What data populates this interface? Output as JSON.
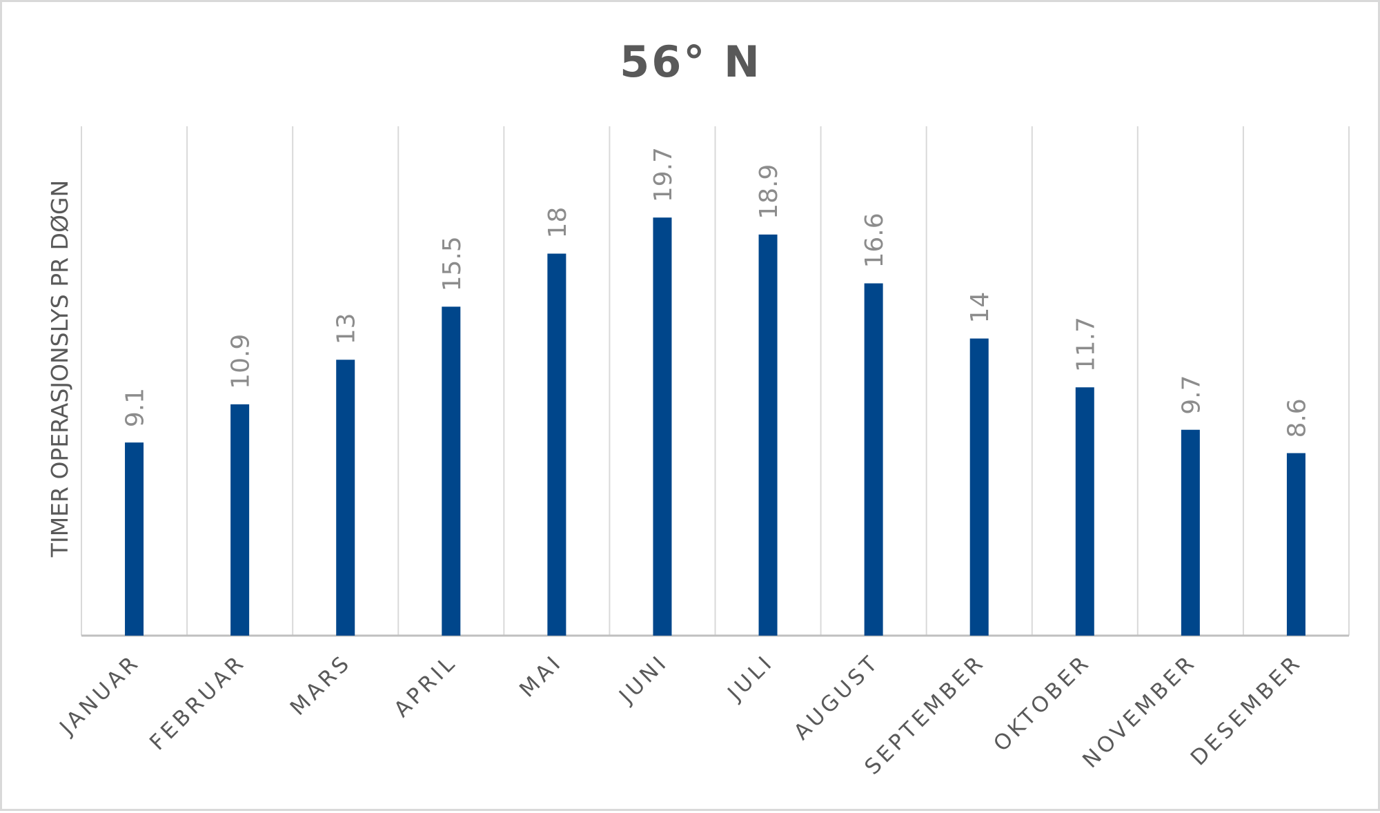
{
  "chart_data": {
    "type": "bar",
    "title": "56° N",
    "xlabel": "",
    "ylabel": "TIMER OPERASJONSLYS PR DØGN",
    "categories": [
      "JANUAR",
      "FEBRUAR",
      "MARS",
      "APRIL",
      "MAI",
      "JUNI",
      "JULI",
      "AUGUST",
      "SEPTEMBER",
      "OKTOBER",
      "NOVEMBER",
      "DESEMBER"
    ],
    "values": [
      9.1,
      10.9,
      13,
      15.5,
      18,
      19.7,
      18.9,
      16.6,
      14,
      11.7,
      9.7,
      8.6
    ],
    "data_labels": [
      "9.1",
      "10.9",
      "13",
      "15.5",
      "18",
      "19.7",
      "18.9",
      "16.6",
      "14",
      "11.7",
      "9.7",
      "8.6"
    ],
    "ylim": [
      0,
      24
    ],
    "grid": "vertical",
    "legend": "none",
    "colors": {
      "bar": "#00468b",
      "gridline": "#d9d9d9",
      "axis": "#bfbfbf"
    }
  }
}
